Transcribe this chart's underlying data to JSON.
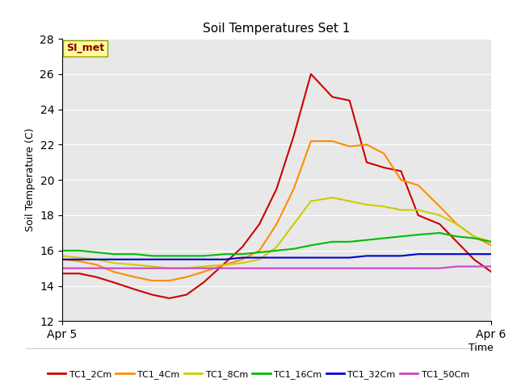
{
  "title": "Soil Temperatures Set 1",
  "ylabel": "Soil Temperature (C)",
  "xlim": [
    0,
    1
  ],
  "ylim": [
    12,
    28
  ],
  "yticks": [
    12,
    14,
    16,
    18,
    20,
    22,
    24,
    26,
    28
  ],
  "background_color": "#e8e8e8",
  "plot_bg": "#e8e8e8",
  "annotation_text": "SI_met",
  "annotation_color": "#8b0000",
  "annotation_bg": "#ffff99",
  "annotation_edge": "#999900",
  "series_order": [
    "TC1_2Cm",
    "TC1_4Cm",
    "TC1_8Cm",
    "TC1_16Cm",
    "TC1_32Cm",
    "TC1_50Cm"
  ],
  "series": {
    "TC1_2Cm": {
      "color": "#cc0000",
      "x": [
        0.0,
        0.04,
        0.08,
        0.12,
        0.17,
        0.21,
        0.25,
        0.29,
        0.33,
        0.38,
        0.42,
        0.46,
        0.5,
        0.54,
        0.58,
        0.63,
        0.67,
        0.71,
        0.75,
        0.79,
        0.83,
        0.88,
        0.92,
        0.96,
        1.0
      ],
      "y": [
        14.7,
        14.7,
        14.5,
        14.2,
        13.8,
        13.5,
        13.3,
        13.5,
        14.2,
        15.3,
        16.2,
        17.5,
        19.5,
        22.5,
        26.0,
        24.7,
        24.5,
        21.0,
        20.7,
        20.5,
        18.0,
        17.5,
        16.5,
        15.5,
        14.8
      ]
    },
    "TC1_4Cm": {
      "color": "#ff8c00",
      "x": [
        0.0,
        0.04,
        0.08,
        0.12,
        0.17,
        0.21,
        0.25,
        0.29,
        0.33,
        0.38,
        0.42,
        0.46,
        0.5,
        0.54,
        0.58,
        0.63,
        0.67,
        0.71,
        0.75,
        0.79,
        0.83,
        0.88,
        0.92,
        0.96,
        1.0
      ],
      "y": [
        15.5,
        15.4,
        15.2,
        14.8,
        14.5,
        14.3,
        14.3,
        14.5,
        14.8,
        15.2,
        15.5,
        16.0,
        17.5,
        19.5,
        22.2,
        22.2,
        21.9,
        22.0,
        21.5,
        20.0,
        19.7,
        18.5,
        17.5,
        16.8,
        16.3
      ]
    },
    "TC1_8Cm": {
      "color": "#cccc00",
      "x": [
        0.0,
        0.04,
        0.08,
        0.12,
        0.17,
        0.21,
        0.25,
        0.29,
        0.33,
        0.38,
        0.42,
        0.46,
        0.5,
        0.54,
        0.58,
        0.63,
        0.67,
        0.71,
        0.75,
        0.79,
        0.83,
        0.88,
        0.92,
        0.96,
        1.0
      ],
      "y": [
        15.7,
        15.6,
        15.5,
        15.3,
        15.2,
        15.1,
        15.0,
        15.0,
        15.1,
        15.2,
        15.3,
        15.5,
        16.2,
        17.5,
        18.8,
        19.0,
        18.8,
        18.6,
        18.5,
        18.3,
        18.3,
        18.0,
        17.5,
        16.8,
        16.5
      ]
    },
    "TC1_16Cm": {
      "color": "#00bb00",
      "x": [
        0.0,
        0.04,
        0.08,
        0.12,
        0.17,
        0.21,
        0.25,
        0.29,
        0.33,
        0.38,
        0.42,
        0.46,
        0.5,
        0.54,
        0.58,
        0.63,
        0.67,
        0.71,
        0.75,
        0.79,
        0.83,
        0.88,
        0.92,
        0.96,
        1.0
      ],
      "y": [
        16.0,
        16.0,
        15.9,
        15.8,
        15.8,
        15.7,
        15.7,
        15.7,
        15.7,
        15.8,
        15.8,
        15.9,
        16.0,
        16.1,
        16.3,
        16.5,
        16.5,
        16.6,
        16.7,
        16.8,
        16.9,
        17.0,
        16.8,
        16.7,
        16.5
      ]
    },
    "TC1_32Cm": {
      "color": "#0000cc",
      "x": [
        0.0,
        0.04,
        0.08,
        0.12,
        0.17,
        0.21,
        0.25,
        0.29,
        0.33,
        0.38,
        0.42,
        0.46,
        0.5,
        0.54,
        0.58,
        0.63,
        0.67,
        0.71,
        0.75,
        0.79,
        0.83,
        0.88,
        0.92,
        0.96,
        1.0
      ],
      "y": [
        15.5,
        15.5,
        15.5,
        15.5,
        15.5,
        15.5,
        15.5,
        15.5,
        15.5,
        15.5,
        15.6,
        15.6,
        15.6,
        15.6,
        15.6,
        15.6,
        15.6,
        15.7,
        15.7,
        15.7,
        15.8,
        15.8,
        15.8,
        15.8,
        15.8
      ]
    },
    "TC1_50Cm": {
      "color": "#cc44cc",
      "x": [
        0.0,
        0.04,
        0.08,
        0.12,
        0.17,
        0.21,
        0.25,
        0.29,
        0.33,
        0.38,
        0.42,
        0.46,
        0.5,
        0.54,
        0.58,
        0.63,
        0.67,
        0.71,
        0.75,
        0.79,
        0.83,
        0.88,
        0.92,
        0.96,
        1.0
      ],
      "y": [
        15.0,
        15.0,
        15.0,
        15.0,
        15.0,
        15.0,
        15.0,
        15.0,
        15.0,
        15.0,
        15.0,
        15.0,
        15.0,
        15.0,
        15.0,
        15.0,
        15.0,
        15.0,
        15.0,
        15.0,
        15.0,
        15.0,
        15.1,
        15.1,
        15.1
      ]
    }
  }
}
